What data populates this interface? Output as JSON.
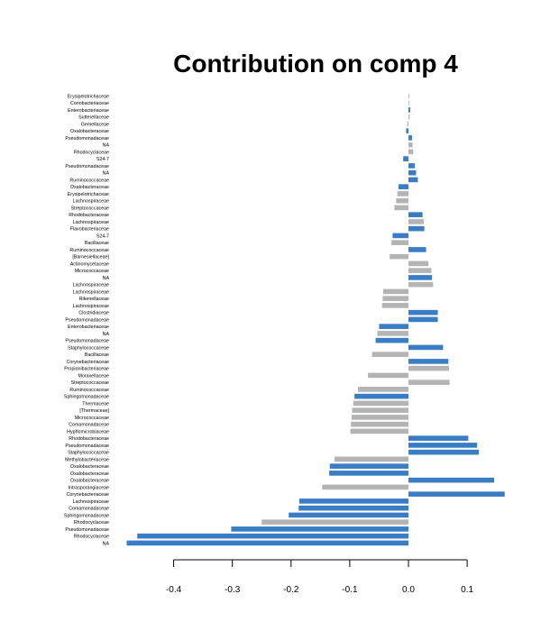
{
  "chart_data": {
    "type": "bar",
    "orientation": "horizontal",
    "title": "Contribution on comp 4",
    "xlabel": "",
    "ylabel": "",
    "xlim": [
      -0.48,
      0.165
    ],
    "x_ticks": [
      "-0.4",
      "-0.3",
      "-0.2",
      "-0.1",
      "0.0",
      "0.1"
    ],
    "grid": false,
    "legend": "none",
    "colors": {
      "group_a": "#3a7dc5",
      "group_b": "#b4b4b4"
    },
    "bars": [
      {
        "label": "Erysipelotrichaceae",
        "value": 0.0,
        "group": "group_b"
      },
      {
        "label": "Coriobacteriaceae",
        "value": 0.001,
        "group": "group_b"
      },
      {
        "label": "Enterobacteriaceae",
        "value": 0.003,
        "group": "group_a"
      },
      {
        "label": "Sutterellaceae",
        "value": 0.002,
        "group": "group_b"
      },
      {
        "label": "Gemellaceae",
        "value": -0.002,
        "group": "group_b"
      },
      {
        "label": "Oxalobacteraceae",
        "value": -0.004,
        "group": "group_a"
      },
      {
        "label": "Pseudomonadaceae",
        "value": 0.006,
        "group": "group_a"
      },
      {
        "label": "NA",
        "value": 0.007,
        "group": "group_b"
      },
      {
        "label": "Rhodocyclaceae",
        "value": 0.008,
        "group": "group_b"
      },
      {
        "label": "S24-7",
        "value": -0.009,
        "group": "group_a"
      },
      {
        "label": "Pseudomonadaceae",
        "value": 0.011,
        "group": "group_a"
      },
      {
        "label": "NA",
        "value": 0.013,
        "group": "group_a"
      },
      {
        "label": "Ruminococcaceae",
        "value": 0.016,
        "group": "group_a"
      },
      {
        "label": "Oxalobacteraceae",
        "value": -0.017,
        "group": "group_a"
      },
      {
        "label": "Erysipelotrichaceae",
        "value": -0.019,
        "group": "group_b"
      },
      {
        "label": "Lachnospiraceae",
        "value": -0.021,
        "group": "group_b"
      },
      {
        "label": "Streptococcaceae",
        "value": -0.024,
        "group": "group_b"
      },
      {
        "label": "Rhodobacteraceae",
        "value": 0.024,
        "group": "group_a"
      },
      {
        "label": "Lachnospiraceae",
        "value": 0.026,
        "group": "group_b"
      },
      {
        "label": "Flavobacteriaceae",
        "value": 0.027,
        "group": "group_a"
      },
      {
        "label": "S24-7",
        "value": -0.027,
        "group": "group_a"
      },
      {
        "label": "Bacillaceae",
        "value": -0.029,
        "group": "group_b"
      },
      {
        "label": "Ruminococcaceae",
        "value": 0.03,
        "group": "group_a"
      },
      {
        "label": "[Barnesiellaceae]",
        "value": -0.032,
        "group": "group_b"
      },
      {
        "label": "Actinomycetaceae",
        "value": 0.034,
        "group": "group_b"
      },
      {
        "label": "Micrococcaceae",
        "value": 0.039,
        "group": "group_b"
      },
      {
        "label": "NA",
        "value": 0.04,
        "group": "group_a"
      },
      {
        "label": "Lachnospiraceae",
        "value": 0.042,
        "group": "group_b"
      },
      {
        "label": "Lachnospiraceae",
        "value": -0.043,
        "group": "group_b"
      },
      {
        "label": "Rikenellaceae",
        "value": -0.044,
        "group": "group_b"
      },
      {
        "label": "Lachnospiraceae",
        "value": -0.045,
        "group": "group_b"
      },
      {
        "label": "Clostridiaceae",
        "value": 0.05,
        "group": "group_a"
      },
      {
        "label": "Pseudomonadaceae",
        "value": 0.05,
        "group": "group_a"
      },
      {
        "label": "Enterobacteriaceae",
        "value": -0.05,
        "group": "group_a"
      },
      {
        "label": "NA",
        "value": -0.053,
        "group": "group_b"
      },
      {
        "label": "Pseudomonadaceae",
        "value": -0.056,
        "group": "group_a"
      },
      {
        "label": "Staphylococcaceae",
        "value": 0.059,
        "group": "group_a"
      },
      {
        "label": "Bacillaceae",
        "value": -0.062,
        "group": "group_b"
      },
      {
        "label": "Corynebacteriaceae",
        "value": 0.068,
        "group": "group_a"
      },
      {
        "label": "Propionibacteriaceae",
        "value": 0.069,
        "group": "group_b"
      },
      {
        "label": "Moraxellaceae",
        "value": -0.069,
        "group": "group_b"
      },
      {
        "label": "Streptococcaceae",
        "value": 0.07,
        "group": "group_b"
      },
      {
        "label": "Ruminococcaceae",
        "value": -0.086,
        "group": "group_b"
      },
      {
        "label": "Sphingomonadaceae",
        "value": -0.092,
        "group": "group_a"
      },
      {
        "label": "Thermaceae",
        "value": -0.094,
        "group": "group_b"
      },
      {
        "label": "[Thermaceae]",
        "value": -0.096,
        "group": "group_b"
      },
      {
        "label": "Micrococcaceae",
        "value": -0.097,
        "group": "group_b"
      },
      {
        "label": "Comamonadaceae",
        "value": -0.098,
        "group": "group_b"
      },
      {
        "label": "Hyphomicrobiaceae",
        "value": -0.099,
        "group": "group_b"
      },
      {
        "label": "Rhodobacteraceae",
        "value": 0.102,
        "group": "group_a"
      },
      {
        "label": "Pseudomonadaceae",
        "value": 0.117,
        "group": "group_a"
      },
      {
        "label": "Staphylococcaceae",
        "value": 0.12,
        "group": "group_a"
      },
      {
        "label": "Methylobacteriaceae",
        "value": -0.126,
        "group": "group_b"
      },
      {
        "label": "Oxalobacteraceae",
        "value": -0.134,
        "group": "group_a"
      },
      {
        "label": "Oxalobacteraceae",
        "value": -0.135,
        "group": "group_a"
      },
      {
        "label": "Oxalobacteraceae",
        "value": 0.146,
        "group": "group_a"
      },
      {
        "label": "Intrasporangiaceae",
        "value": -0.147,
        "group": "group_b"
      },
      {
        "label": "Corynebacteriaceae",
        "value": 0.164,
        "group": "group_a"
      },
      {
        "label": "Lachnospiraceae",
        "value": -0.186,
        "group": "group_a"
      },
      {
        "label": "Comamonadaceae",
        "value": -0.187,
        "group": "group_a"
      },
      {
        "label": "Sphingomonadaceae",
        "value": -0.204,
        "group": "group_a"
      },
      {
        "label": "Rhodocyclaceae",
        "value": -0.25,
        "group": "group_b"
      },
      {
        "label": "Pseudomonadaceae",
        "value": -0.302,
        "group": "group_a"
      },
      {
        "label": "Rhodocyclaceae",
        "value": -0.462,
        "group": "group_a"
      },
      {
        "label": "NA",
        "value": -0.48,
        "group": "group_a"
      }
    ]
  }
}
